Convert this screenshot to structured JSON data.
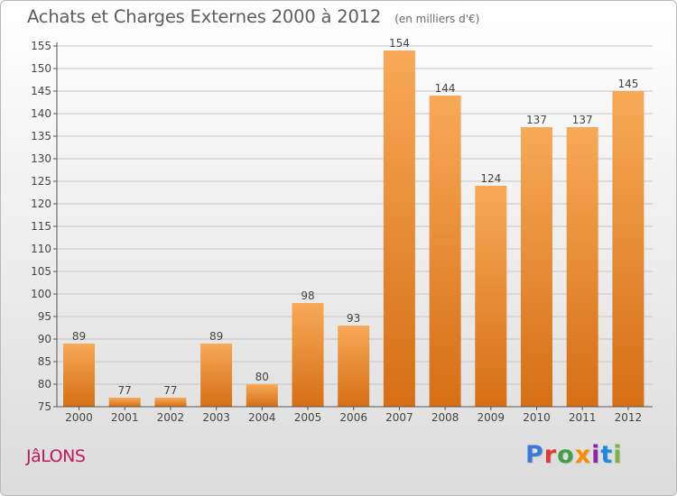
{
  "header": {
    "title": "Achats et Charges Externes 2000 à 2012",
    "unit": "(en milliers d'€)"
  },
  "commune": "JâLONS",
  "logo": {
    "letters": [
      {
        "ch": "P",
        "color": "#3b7bd6"
      },
      {
        "ch": "r",
        "color": "#e53935"
      },
      {
        "ch": "o",
        "color": "#43a047"
      },
      {
        "ch": "x",
        "color": "#fb8c00"
      },
      {
        "ch": "i",
        "color": "#8e24aa"
      },
      {
        "ch": "t",
        "color": "#1e88e5"
      },
      {
        "ch": "i",
        "color": "#7cb342"
      }
    ]
  },
  "colors": {
    "bar_top": "#f8a958",
    "bar_bottom": "#d56f14",
    "grid": "#c6c6c6",
    "axis_text": "#444444"
  },
  "chart_data": {
    "type": "bar",
    "title": "Achats et Charges Externes 2000 à 2012",
    "subtitle": "(en milliers d'€)",
    "xlabel": "",
    "ylabel": "",
    "categories": [
      "2000",
      "2001",
      "2002",
      "2003",
      "2004",
      "2005",
      "2006",
      "2007",
      "2008",
      "2009",
      "2010",
      "2011",
      "2012"
    ],
    "values": [
      89,
      77,
      77,
      89,
      80,
      98,
      93,
      154,
      144,
      124,
      137,
      137,
      145
    ],
    "ylim": [
      75,
      155
    ],
    "yticks": [
      75,
      80,
      85,
      90,
      95,
      100,
      105,
      110,
      115,
      120,
      125,
      130,
      135,
      140,
      145,
      150,
      155
    ],
    "grid": true,
    "data_labels": true,
    "legend": "none"
  }
}
